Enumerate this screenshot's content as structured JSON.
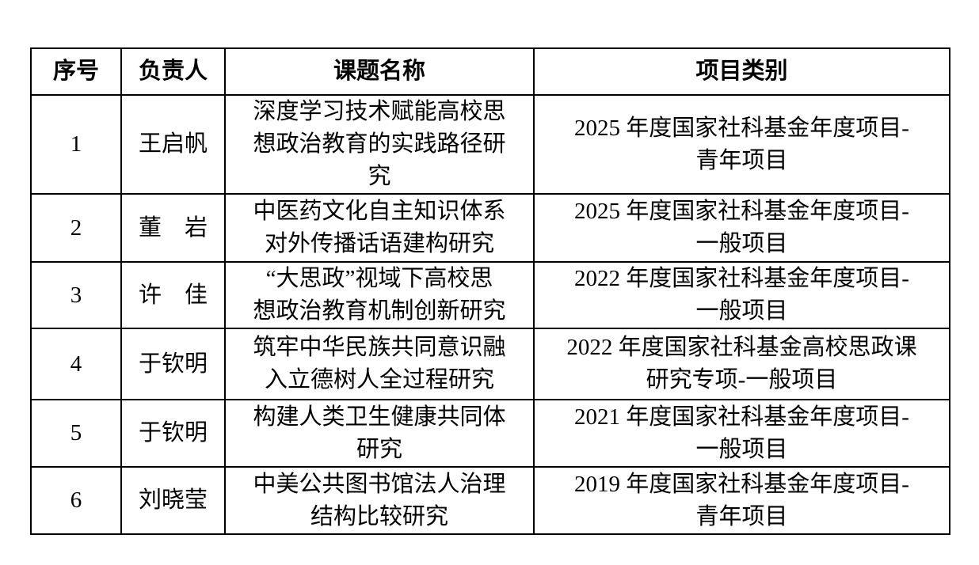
{
  "table": {
    "headers": [
      "序号",
      "负责人",
      "课题名称",
      "项目类别"
    ],
    "rows": [
      {
        "no": "1",
        "leader": "王启帆",
        "title": "深度学习技术赋能高校思\n想政治教育的实践路径研\n究",
        "category": "2025 年度国家社科基金年度项目-\n青年项目"
      },
      {
        "no": "2",
        "leader": "董　岩",
        "title": "中医药文化自主知识体系\n对外传播话语建构研究",
        "category": "2025 年度国家社科基金年度项目-\n一般项目"
      },
      {
        "no": "3",
        "leader": "许　佳",
        "title": "“大思政”视域下高校思\n想政治教育机制创新研究",
        "category": "2022 年度国家社科基金年度项目-\n一般项目"
      },
      {
        "no": "4",
        "leader": "于钦明",
        "title": "筑牢中华民族共同意识融\n入立德树人全过程研究",
        "category": "2022 年度国家社科基金高校思政课\n研究专项-一般项目"
      },
      {
        "no": "5",
        "leader": "于钦明",
        "title": "构建人类卫生健康共同体\n研究",
        "category": "2021 年度国家社科基金年度项目-\n一般项目"
      },
      {
        "no": "6",
        "leader": "刘晓莹",
        "title": "中美公共图书馆法人治理\n结构比较研究",
        "category": "2019 年度国家社科基金年度项目-\n青年项目"
      }
    ]
  }
}
